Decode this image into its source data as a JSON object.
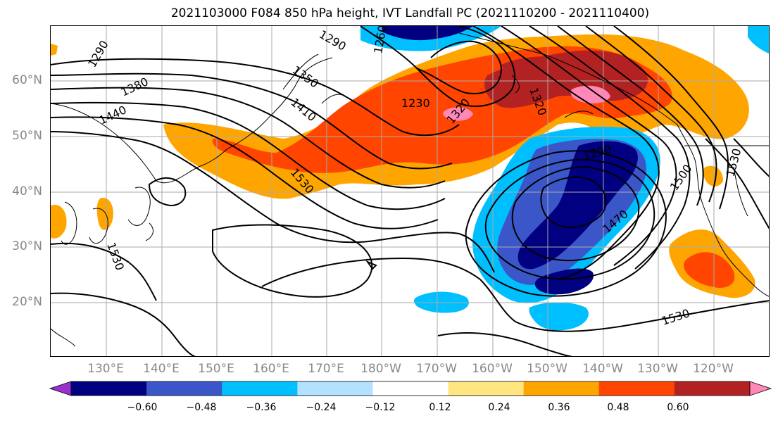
{
  "title": "2021103000 F084 850 hPa height, IVT Landfall PC (2021110200 - 2021110400)",
  "lat_labels": [
    "60°N",
    "50°N",
    "40°N",
    "30°N",
    "20°N"
  ],
  "lon_labels": [
    "130°E",
    "140°E",
    "150°E",
    "160°E",
    "170°E",
    "180°W",
    "170°W",
    "160°W",
    "150°W",
    "140°W",
    "130°W",
    "120°W"
  ],
  "contour_labels": [
    "1290",
    "1290",
    "1260",
    "1380",
    "1350",
    "1440",
    "1410",
    "1230",
    "1320",
    "1320",
    "1290",
    "1530",
    "1500",
    "1530",
    "1470",
    "1530",
    "1530"
  ],
  "colorbar": {
    "ticks": [
      "−0.60",
      "−0.48",
      "−0.36",
      "−0.24",
      "−0.12",
      "0.12",
      "0.24",
      "0.36",
      "0.48",
      "0.60"
    ],
    "colors": [
      "#9932CC",
      "#000080",
      "#3A56C8",
      "#00BFFF",
      "#B2E2FF",
      "#FFFFFF",
      "#FFE680",
      "#FFA500",
      "#FF4500",
      "#B22222",
      "#FF88B8"
    ]
  },
  "colors": {
    "land_outline": "#000000",
    "grid": "#aaaaaa",
    "axis_text": "#888888"
  }
}
